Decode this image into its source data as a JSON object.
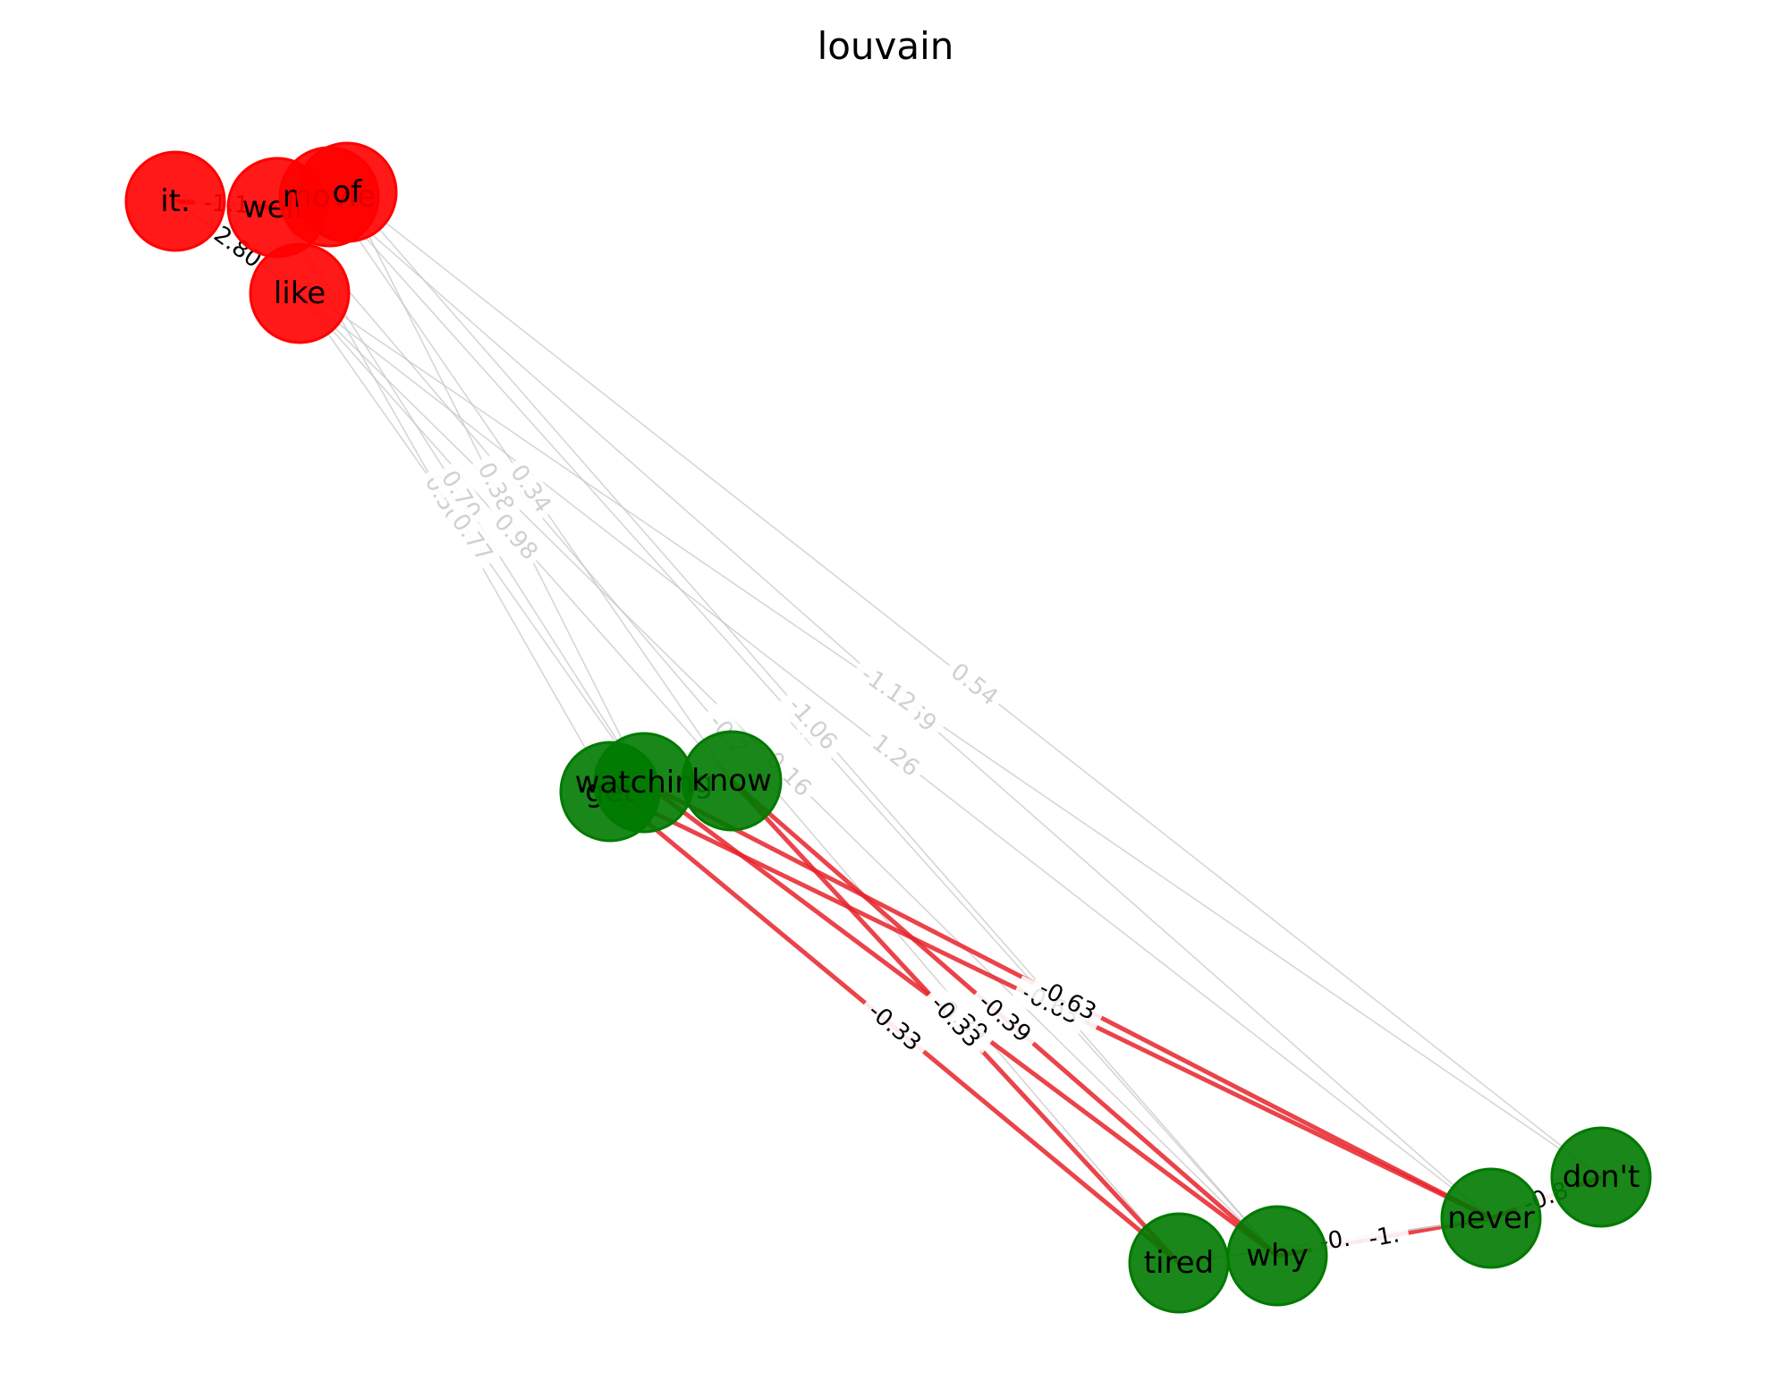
{
  "title": "louvain",
  "colors": {
    "community_1": "#ff0000",
    "community_2": "#007a00",
    "edge_positive": "#c8c8c8",
    "edge_negative": "#e8222a",
    "label_dark": "#000000",
    "label_light": "#d0d0d0"
  },
  "communities": [
    {
      "id": "c1",
      "color": "#ff0000"
    },
    {
      "id": "c2",
      "color": "#007a00"
    }
  ],
  "nodes": [
    {
      "id": "it",
      "label": "it.",
      "community": "c1"
    },
    {
      "id": "well",
      "label": "well,",
      "community": "c1"
    },
    {
      "id": "movie",
      "label": "movie",
      "community": "c1"
    },
    {
      "id": "of",
      "label": "of",
      "community": "c1"
    },
    {
      "id": "like",
      "label": "like",
      "community": "c1"
    },
    {
      "id": "get",
      "label": "get",
      "community": "c2"
    },
    {
      "id": "watching",
      "label": "watching",
      "community": "c2"
    },
    {
      "id": "know",
      "label": "know",
      "community": "c2"
    },
    {
      "id": "tired",
      "label": "tired",
      "community": "c2"
    },
    {
      "id": "why",
      "label": "why",
      "community": "c2"
    },
    {
      "id": "never",
      "label": "never",
      "community": "c2"
    },
    {
      "id": "dont",
      "label": "don't",
      "community": "c2"
    }
  ],
  "edges": [
    {
      "source": "it",
      "target": "well",
      "weight": "-1.1"
    },
    {
      "source": "it",
      "target": "like",
      "weight": "2.80"
    },
    {
      "source": "well",
      "target": "get",
      "weight": "0.50"
    },
    {
      "source": "well",
      "target": "watching",
      "weight": "0.70"
    },
    {
      "source": "movie",
      "target": "know",
      "weight": "0.34"
    },
    {
      "source": "of",
      "target": "watching",
      "weight": "0.38"
    },
    {
      "source": "like",
      "target": "watching",
      "weight": "0.77"
    },
    {
      "source": "like",
      "target": "know",
      "weight": "0.98"
    },
    {
      "source": "movie",
      "target": "why",
      "weight": "-1.2"
    },
    {
      "source": "well",
      "target": "tired",
      "weight": "-0.2"
    },
    {
      "source": "of",
      "target": "why",
      "weight": "-1.06"
    },
    {
      "source": "movie",
      "target": "never",
      "weight": "-0.59"
    },
    {
      "source": "of",
      "target": "dont",
      "weight": "0.54"
    },
    {
      "source": "like",
      "target": "never",
      "weight": "1.26"
    },
    {
      "source": "it",
      "target": "dont",
      "weight": "-1.12"
    },
    {
      "source": "like",
      "target": "why",
      "weight": "0.16"
    },
    {
      "source": "get",
      "target": "tired",
      "weight": "-0.33"
    },
    {
      "source": "watching",
      "target": "why",
      "weight": "-0.39"
    },
    {
      "source": "get",
      "target": "never",
      "weight": "-0.63"
    },
    {
      "source": "watching",
      "target": "never",
      "weight": "-0.63"
    },
    {
      "source": "know",
      "target": "tired",
      "weight": "-0.33"
    },
    {
      "source": "know",
      "target": "why",
      "weight": "-0.39"
    },
    {
      "source": "why",
      "target": "never",
      "weight": "-1."
    },
    {
      "source": "tired",
      "target": "never",
      "weight": "-0."
    },
    {
      "source": "never",
      "target": "dont",
      "weight": "-0.8"
    }
  ]
}
